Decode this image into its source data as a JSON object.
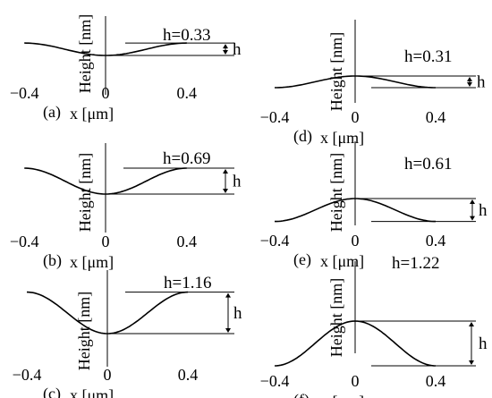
{
  "chart_data": [
    {
      "type": "line",
      "panel": "(a)",
      "h_label": "h=0.33",
      "h_marker": "h",
      "xlabel": "x [μm]",
      "ylabel": "Height [nm]",
      "xticks": [
        "−0.4",
        "0",
        "0.4"
      ],
      "xlim": [
        -0.4,
        0.4
      ],
      "series": [
        {
          "profile": "well",
          "h": 0.33
        }
      ]
    },
    {
      "type": "line",
      "panel": "(b)",
      "h_label": "h=0.69",
      "h_marker": "h",
      "xlabel": "x [μm]",
      "ylabel": "Height [nm]",
      "xticks": [
        "−0.4",
        "0",
        "0.4"
      ],
      "xlim": [
        -0.4,
        0.4
      ],
      "series": [
        {
          "profile": "well",
          "h": 0.69
        }
      ]
    },
    {
      "type": "line",
      "panel": "(c)",
      "h_label": "h=1.16",
      "h_marker": "h",
      "xlabel": "x [μm]",
      "ylabel": "Height [nm]",
      "xticks": [
        "−0.4",
        "0",
        "0.4"
      ],
      "xlim": [
        -0.4,
        0.4
      ],
      "series": [
        {
          "profile": "well",
          "h": 1.16
        }
      ]
    },
    {
      "type": "line",
      "panel": "(d)",
      "h_label": "h=0.31",
      "h_marker": "h",
      "xlabel": "x [μm]",
      "ylabel": "Height [nm]",
      "xticks": [
        "−0.4",
        "0",
        "0.4"
      ],
      "xlim": [
        -0.4,
        0.4
      ],
      "series": [
        {
          "profile": "bump",
          "h": 0.31
        }
      ]
    },
    {
      "type": "line",
      "panel": "(e)",
      "h_label": "h=0.61",
      "h_marker": "h",
      "xlabel": "x [μm]",
      "ylabel": "Height [nm]",
      "xticks": [
        "−0.4",
        "0",
        "0.4"
      ],
      "xlim": [
        -0.4,
        0.4
      ],
      "series": [
        {
          "profile": "bump",
          "h": 0.61
        }
      ]
    },
    {
      "type": "line",
      "panel": "(f)",
      "h_label": "h=1.22",
      "h_marker": "h",
      "xlabel": "x [μm]",
      "ylabel": "Height [nm]",
      "xticks": [
        "−0.4",
        "0",
        "0.4"
      ],
      "xlim": [
        -0.4,
        0.4
      ],
      "series": [
        {
          "profile": "bump",
          "h": 1.22
        }
      ]
    }
  ]
}
